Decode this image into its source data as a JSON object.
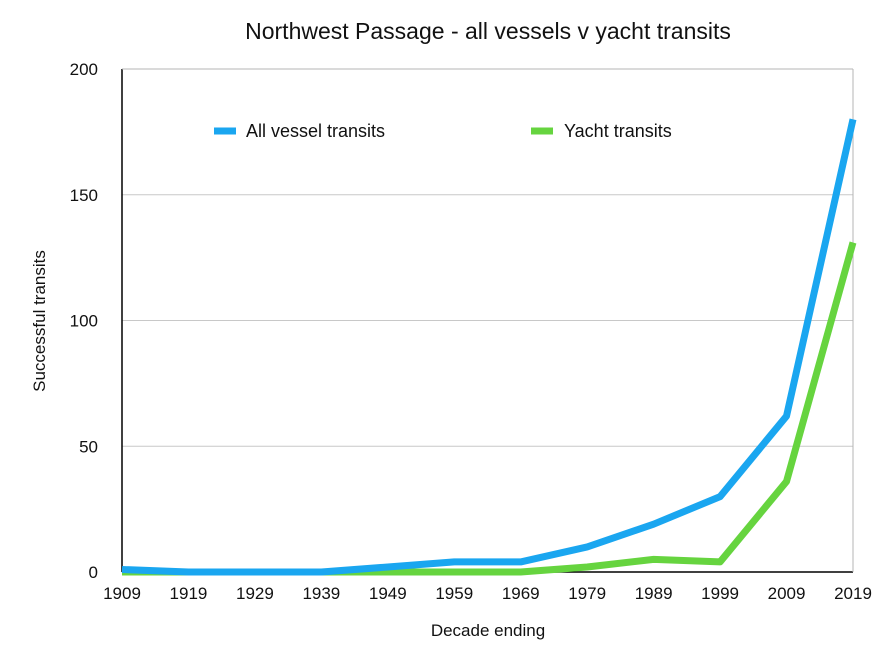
{
  "chart_data": {
    "type": "line",
    "title": "Northwest Passage - all vessels v yacht transits",
    "xlabel": "Decade ending",
    "ylabel": "Successful transits",
    "categories": [
      "1909",
      "1919",
      "1929",
      "1939",
      "1949",
      "1959",
      "1969",
      "1979",
      "1989",
      "1999",
      "2009",
      "2019"
    ],
    "ylim": [
      0,
      200
    ],
    "yticks": [
      0,
      50,
      100,
      150,
      200
    ],
    "grid": true,
    "legend_position": "top",
    "series": [
      {
        "name": "All vessel transits",
        "color": "#1aa6f0",
        "values": [
          1,
          0,
          0,
          0,
          2,
          4,
          4,
          10,
          19,
          30,
          62,
          180
        ]
      },
      {
        "name": "Yacht transits",
        "color": "#66d43f",
        "values": [
          0,
          0,
          0,
          0,
          0,
          0,
          0,
          2,
          5,
          4,
          36,
          131
        ]
      }
    ]
  }
}
